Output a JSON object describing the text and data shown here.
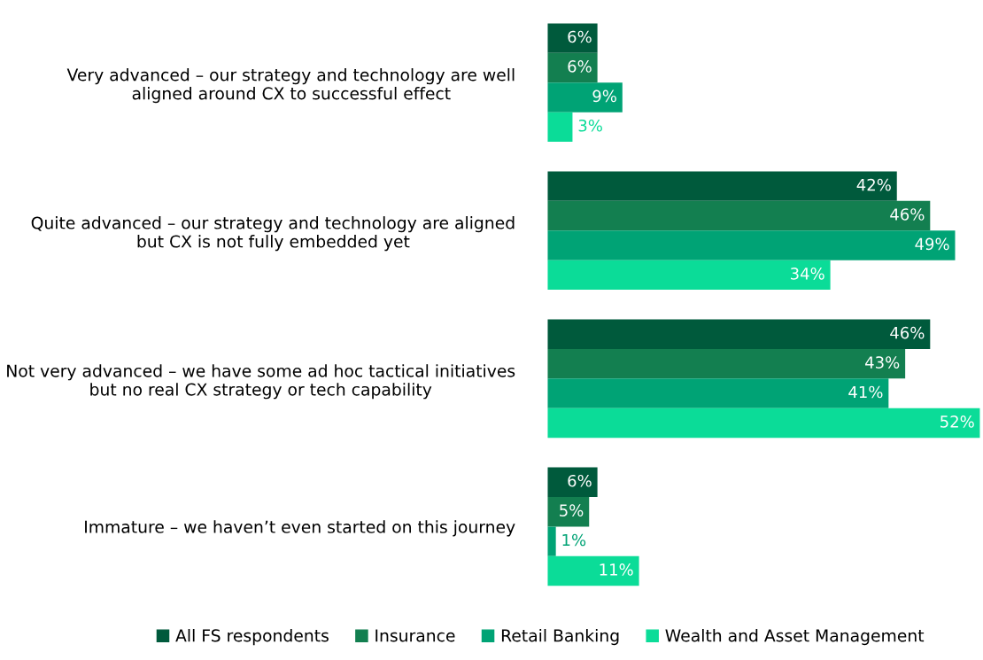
{
  "chart_data": {
    "type": "bar",
    "orientation": "horizontal",
    "legend": "bottom",
    "categories": [
      "Very advanced – our strategy and technology are well\naligned around CX to successful effect",
      "Quite advanced – our strategy and technology are aligned\nbut CX is not fully embedded yet",
      "Not very advanced – we have some ad hoc tactical initiatives\nbut no real CX strategy or tech capability",
      "Immature – we haven’t even started on this journey"
    ],
    "series": [
      {
        "name": "All FS respondents",
        "color": "#005a3c",
        "values": [
          6,
          42,
          46,
          6
        ],
        "value_labels": [
          "6%",
          "42%",
          "46%",
          "6%"
        ]
      },
      {
        "name": "Insurance",
        "color": "#137f50",
        "values": [
          6,
          46,
          43,
          5
        ],
        "value_labels": [
          "6%",
          "46%",
          "43%",
          "5%"
        ]
      },
      {
        "name": "Retail Banking",
        "color": "#00a375",
        "values": [
          9,
          49,
          41,
          1
        ],
        "value_labels": [
          "9%",
          "49%",
          "41%",
          "1%"
        ]
      },
      {
        "name": "Wealth and Asset Management",
        "color": "#0bdc98",
        "values": [
          3,
          34,
          52,
          11
        ],
        "value_labels": [
          "3%",
          "34%",
          "52%",
          "11%"
        ]
      }
    ]
  }
}
